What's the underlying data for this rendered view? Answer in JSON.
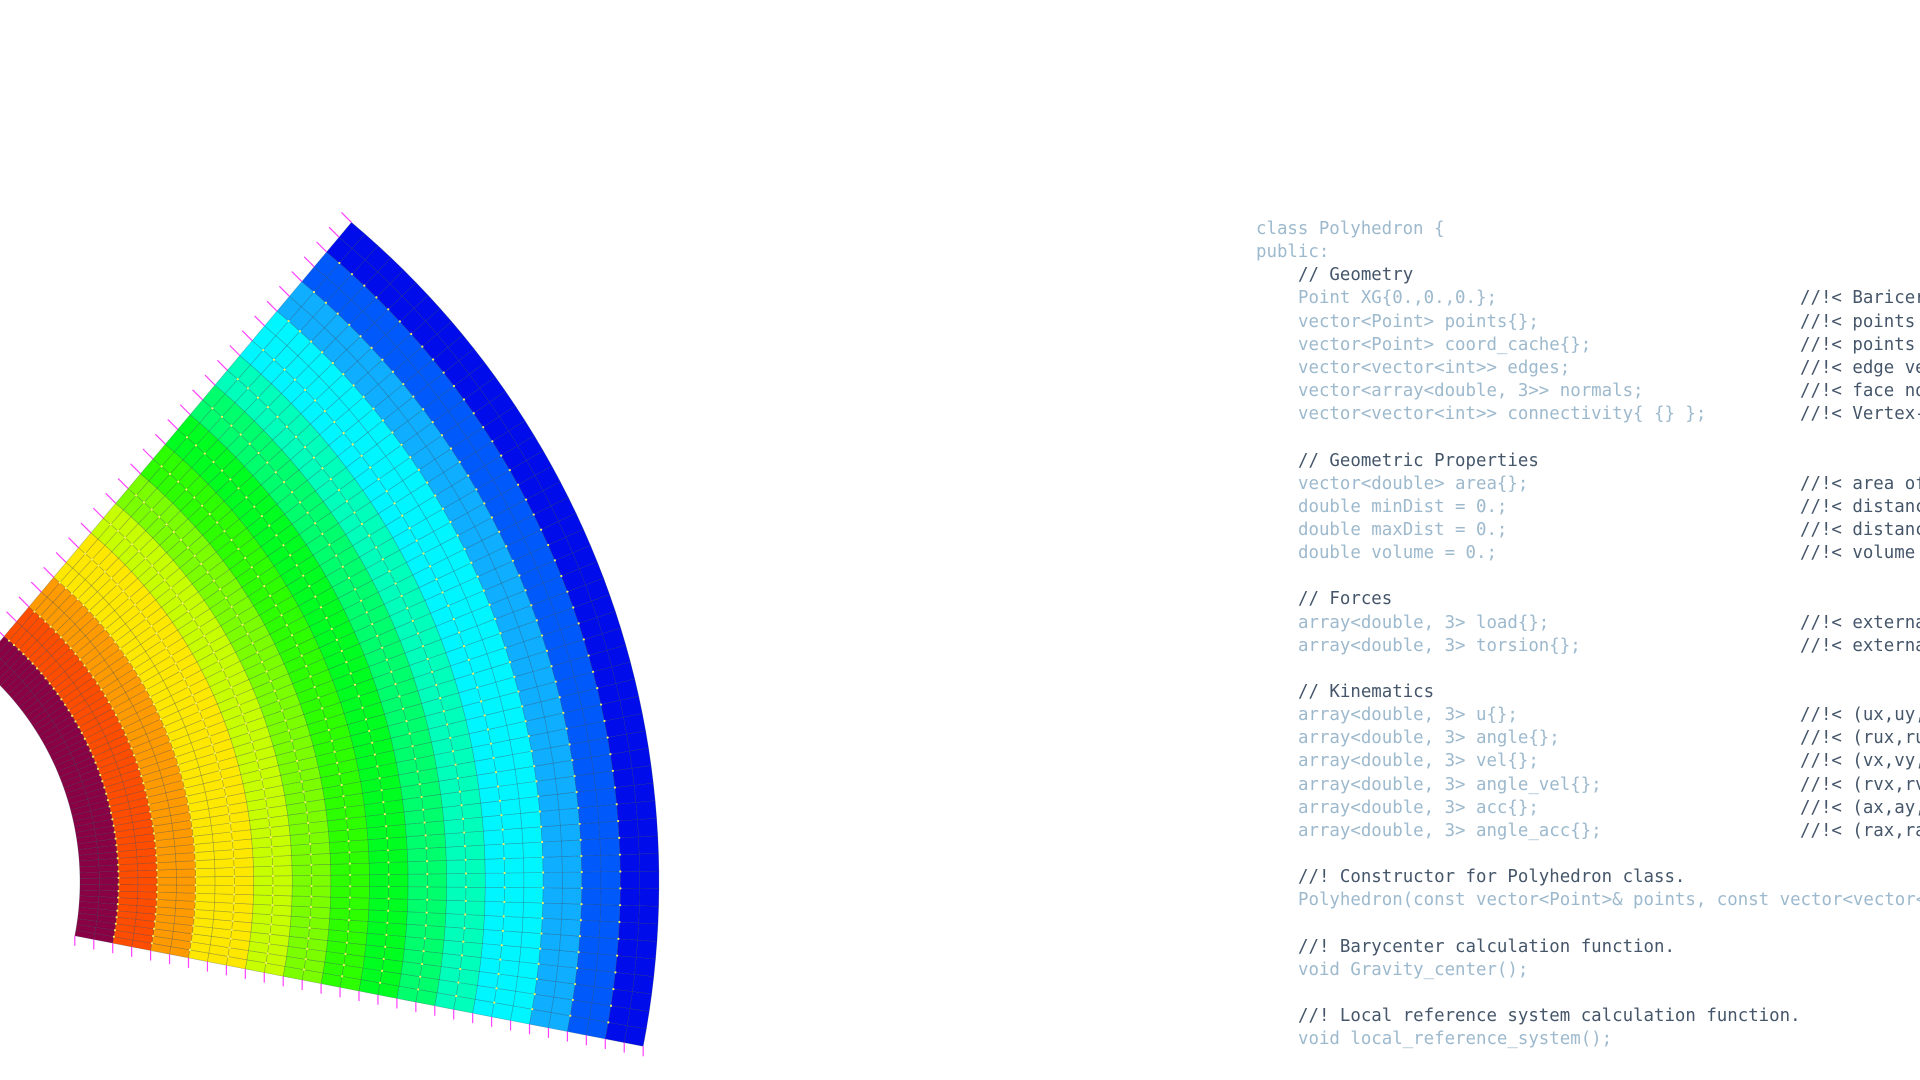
{
  "code": {
    "header": [
      "class Polyhedron {",
      "public:"
    ],
    "blocks": [
      {
        "lines": [
          {
            "code": "// Geometry"
          },
          {
            "code": "Point XG{0.,0.,0.};",
            "comment": "//!< Baricer"
          },
          {
            "code": "vector<Point> points{};",
            "comment": "//!< points"
          },
          {
            "code": "vector<Point> coord_cache{};",
            "comment": "//!< points"
          },
          {
            "code": "vector<vector<int>> edges;",
            "comment": "//!< edge ve"
          },
          {
            "code": "vector<array<double, 3>> normals;",
            "comment": "//!< face no"
          },
          {
            "code": "vector<vector<int>> connectivity{ {} };",
            "comment": "//!< Vertex-"
          }
        ]
      },
      {
        "lines": [
          {
            "code": "// Geometric Properties"
          },
          {
            "code": "vector<double> area{};",
            "comment": "//!< area of"
          },
          {
            "code": "double minDist = 0.;",
            "comment": "//!< distanc"
          },
          {
            "code": "double maxDist = 0.;",
            "comment": "//!< distanc"
          },
          {
            "code": "double volume = 0.;",
            "comment": "//!< volume"
          }
        ]
      },
      {
        "lines": [
          {
            "code": "// Forces"
          },
          {
            "code": "array<double, 3> load{};",
            "comment": "//!< externa"
          },
          {
            "code": "array<double, 3> torsion{};",
            "comment": "//!< externa"
          }
        ]
      },
      {
        "lines": [
          {
            "code": "// Kinematics"
          },
          {
            "code": "array<double, 3> u{};",
            "comment": "//!< (ux,uy,"
          },
          {
            "code": "array<double, 3> angle{};",
            "comment": "//!< (rux,ru"
          },
          {
            "code": "array<double, 3> vel{};",
            "comment": "//!< (vx,vy,"
          },
          {
            "code": "array<double, 3> angle_vel{};",
            "comment": "//!< (rvx,rv"
          },
          {
            "code": "array<double, 3> acc{};",
            "comment": "//!< (ax,ay,"
          },
          {
            "code": "array<double, 3> angle_acc{};",
            "comment": "//!< (rax,ra"
          }
        ]
      },
      {
        "lines": [
          {
            "code": "//! Constructor for Polyhedron class."
          },
          {
            "code": "Polyhedron(const vector<Point>& points, const vector<vector<"
          }
        ]
      },
      {
        "lines": [
          {
            "code": "//! Barycenter calculation function."
          },
          {
            "code": "void Gravity_center();"
          }
        ]
      },
      {
        "lines": [
          {
            "code": "//! Local reference system calculation function."
          },
          {
            "code": "void local_reference_system();"
          }
        ]
      }
    ]
  }
}
